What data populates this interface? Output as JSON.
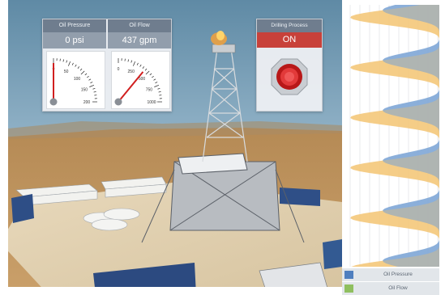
{
  "oil_pressure": {
    "label": "Oil Pressure",
    "value_text": "0 psi",
    "value": 0,
    "ticks": [
      "0",
      "50",
      "100",
      "150",
      "200"
    ],
    "max": 200
  },
  "oil_flow": {
    "label": "Oil Flow",
    "value_text": "437 gpm",
    "value": 437,
    "ticks": [
      "0",
      "250",
      "500",
      "750",
      "1000"
    ],
    "max": 1000
  },
  "drilling": {
    "label": "Drilling Process",
    "status": "ON"
  },
  "legend": {
    "pressure": {
      "label": "Oil Pressure",
      "color": "#4f7fbf"
    },
    "flow": {
      "label": "Oil Flow",
      "color": "#8fbf5f"
    }
  },
  "colors": {
    "flow_fill": "#f4c87a",
    "pressure_fill": "#7ea6d6",
    "needle": "#d11f1f",
    "on_red": "#c8413a"
  }
}
